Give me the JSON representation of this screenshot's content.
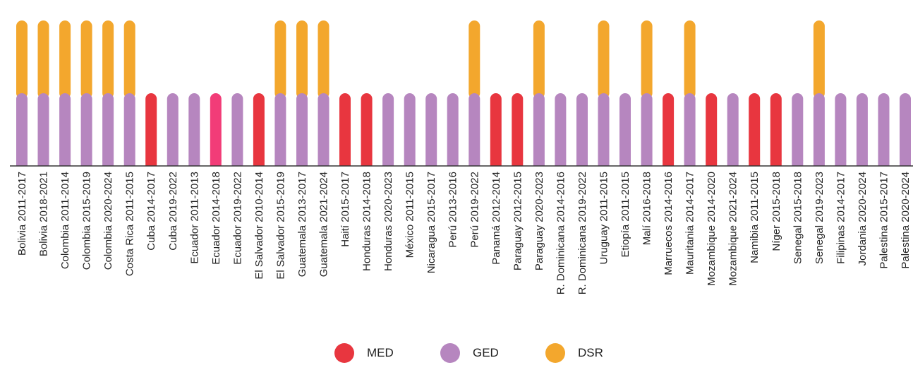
{
  "chart_data": {
    "type": "bar",
    "stacked": true,
    "colors": {
      "MED": "#e8363f",
      "GED": "#b686bf",
      "DSR": "#f3a72d"
    },
    "categories": [
      "Bolivia 2011-2017",
      "Bolivia 2018-2021",
      "Colombia 2011-2014",
      "Colombia 2015-2019",
      "Colombia 2020-2024",
      "Costa Rica 2011-2015",
      "Cuba 2014-2017",
      "Cuba 2019-2022",
      "Ecuador 2011-2013",
      "Ecuador 2014-2018",
      "Ecuador 2019-2022",
      "El Salvador 2010-2014",
      "El Salvador 2015-2019",
      "Guatemala 2013-2017",
      "Guatemala 2021-2024",
      "Haití 2015-2017",
      "Honduras 2014-2018",
      "Honduras 2020-2023",
      "México 2011-2015",
      "Nicaragua 2015-2017",
      "Perú 2013-2016",
      "Perú 2019-2022",
      "Panamá 2012-2014",
      "Paraguay 2012-2015",
      "Paraguay 2020-2023",
      "R. Dominicana 2014-2016",
      "R. Dominicana 2019-2022",
      "Uruguay 2011-2015",
      "Etiopía 2011-2015",
      "Malí 2016-2018",
      "Marruecos 2014-2016",
      "Mauritania 2014-2017",
      "Mozambique 2014-2020",
      "Mozambique 2021-2024",
      "Namibia 2011-2015",
      "Níger 2015-2018",
      "Senegal 2015-2018",
      "Senegal 2019-2023",
      "Filipinas 2014-2017",
      "Jordania 2020-2024",
      "Palestina 2015-2017",
      "Palestina 2020-2024"
    ],
    "base": [
      "GED",
      "GED",
      "GED",
      "GED",
      "GED",
      "GED",
      "MED",
      "GED",
      "GED",
      "MED_PINK",
      "GED",
      "MED",
      "GED",
      "GED",
      "GED",
      "MED",
      "MED",
      "GED",
      "GED",
      "GED",
      "GED",
      "GED",
      "MED",
      "MED",
      "GED",
      "GED",
      "GED",
      "GED",
      "GED",
      "GED",
      "MED",
      "GED",
      "MED",
      "GED",
      "MED",
      "MED",
      "GED",
      "GED",
      "GED",
      "GED",
      "GED",
      "GED"
    ],
    "series": [
      {
        "name": "MED",
        "values": [
          0,
          0,
          0,
          0,
          0,
          0,
          1,
          0,
          0,
          1,
          0,
          1,
          0,
          0,
          0,
          1,
          1,
          0,
          0,
          0,
          0,
          0,
          1,
          1,
          0,
          0,
          0,
          0,
          0,
          0,
          1,
          0,
          1,
          0,
          1,
          1,
          0,
          0,
          0,
          0,
          0,
          0
        ]
      },
      {
        "name": "GED",
        "values": [
          1,
          1,
          1,
          1,
          1,
          1,
          0,
          1,
          1,
          0,
          1,
          0,
          1,
          1,
          1,
          0,
          0,
          1,
          1,
          1,
          1,
          1,
          0,
          0,
          1,
          1,
          1,
          1,
          1,
          1,
          0,
          1,
          0,
          1,
          0,
          0,
          1,
          1,
          1,
          1,
          1,
          1
        ]
      },
      {
        "name": "DSR",
        "values": [
          1,
          1,
          1,
          1,
          1,
          1,
          0,
          0,
          0,
          0,
          0,
          0,
          1,
          1,
          1,
          0,
          0,
          0,
          0,
          0,
          0,
          1,
          0,
          0,
          1,
          0,
          0,
          1,
          0,
          1,
          0,
          1,
          0,
          0,
          0,
          0,
          0,
          1,
          0,
          0,
          0,
          0
        ]
      }
    ],
    "pink_color": "#f23c78",
    "legend": [
      "MED",
      "GED",
      "DSR"
    ],
    "legend_position": "bottom",
    "grid": false
  }
}
